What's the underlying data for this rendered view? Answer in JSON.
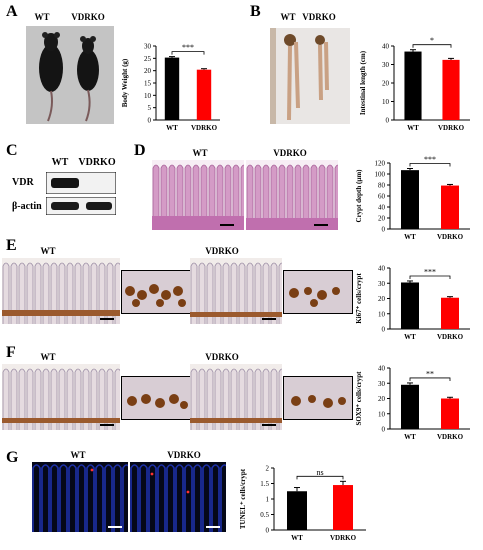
{
  "panels": {
    "A": {
      "letter": "A",
      "photo_labels": [
        "WT",
        "VDRKO"
      ],
      "chart_id": "chart-A"
    },
    "B": {
      "letter": "B",
      "photo_labels": [
        "WT",
        "VDRKO"
      ],
      "chart_id": "chart-B"
    },
    "C": {
      "letter": "C",
      "col_labels": [
        "WT",
        "VDRKO"
      ],
      "row_labels": [
        "VDR",
        "β-actin"
      ]
    },
    "D": {
      "letter": "D",
      "image_labels": [
        "WT",
        "VDRKO"
      ],
      "chart_id": "chart-D"
    },
    "E": {
      "letter": "E",
      "image_labels": [
        "WT",
        "VDRKO"
      ],
      "chart_id": "chart-E"
    },
    "F": {
      "letter": "F",
      "image_labels": [
        "WT",
        "VDRKO"
      ],
      "chart_id": "chart-F"
    },
    "G": {
      "letter": "G",
      "image_labels": [
        "WT",
        "VDRKO"
      ],
      "chart_id": "chart-G"
    }
  },
  "colors": {
    "wt": "#000000",
    "vdrko": "#ff0000",
    "he_stain": "#c77fb5",
    "ihc_brown": "#8b4513",
    "tunel_blue": "#0a1a6e"
  },
  "chart_data": [
    {
      "id": "chart-A",
      "type": "bar",
      "categories": [
        "WT",
        "VDRKO"
      ],
      "values": [
        25.3,
        20.4
      ],
      "errors": [
        0.4,
        0.4
      ],
      "ylabel": "Body Weight (g)",
      "ylim": [
        0,
        30
      ],
      "yticks": [
        0,
        5,
        10,
        15,
        20,
        25,
        30
      ],
      "significance": "***"
    },
    {
      "id": "chart-B",
      "type": "bar",
      "categories": [
        "WT",
        "VDRKO"
      ],
      "values": [
        37,
        32.5
      ],
      "errors": [
        1.0,
        0.8
      ],
      "ylabel": "Intestinal length (cm)",
      "ylim": [
        0,
        40
      ],
      "yticks": [
        0,
        10,
        20,
        30,
        40
      ],
      "significance": "*"
    },
    {
      "id": "chart-D",
      "type": "bar",
      "categories": [
        "WT",
        "VDRKO"
      ],
      "values": [
        107,
        79
      ],
      "errors": [
        3,
        2
      ],
      "ylabel": "Crypt depth (μm)",
      "ylim": [
        0,
        120
      ],
      "yticks": [
        0,
        20,
        40,
        60,
        80,
        100,
        120
      ],
      "significance": "***"
    },
    {
      "id": "chart-E",
      "type": "bar",
      "categories": [
        "WT",
        "VDRKO"
      ],
      "values": [
        30.5,
        20.5
      ],
      "errors": [
        1.0,
        0.7
      ],
      "ylabel": "Ki67⁺ cells/crypt",
      "ylim": [
        0,
        40
      ],
      "yticks": [
        0,
        10,
        20,
        30,
        40
      ],
      "significance": "***"
    },
    {
      "id": "chart-F",
      "type": "bar",
      "categories": [
        "WT",
        "VDRKO"
      ],
      "values": [
        29,
        20
      ],
      "errors": [
        1.2,
        0.8
      ],
      "ylabel": "SOX9⁺ cells/crypt",
      "ylim": [
        0,
        40
      ],
      "yticks": [
        0,
        10,
        20,
        30,
        40
      ],
      "significance": "**"
    },
    {
      "id": "chart-G",
      "type": "bar",
      "categories": [
        "WT",
        "VDRKO"
      ],
      "values": [
        1.25,
        1.45
      ],
      "errors": [
        0.12,
        0.12
      ],
      "ylabel": "TUNEL⁺ cells/crypt",
      "ylim": [
        0,
        2
      ],
      "yticks": [
        0,
        0.5,
        1,
        1.5,
        2
      ],
      "significance": "ns"
    }
  ]
}
